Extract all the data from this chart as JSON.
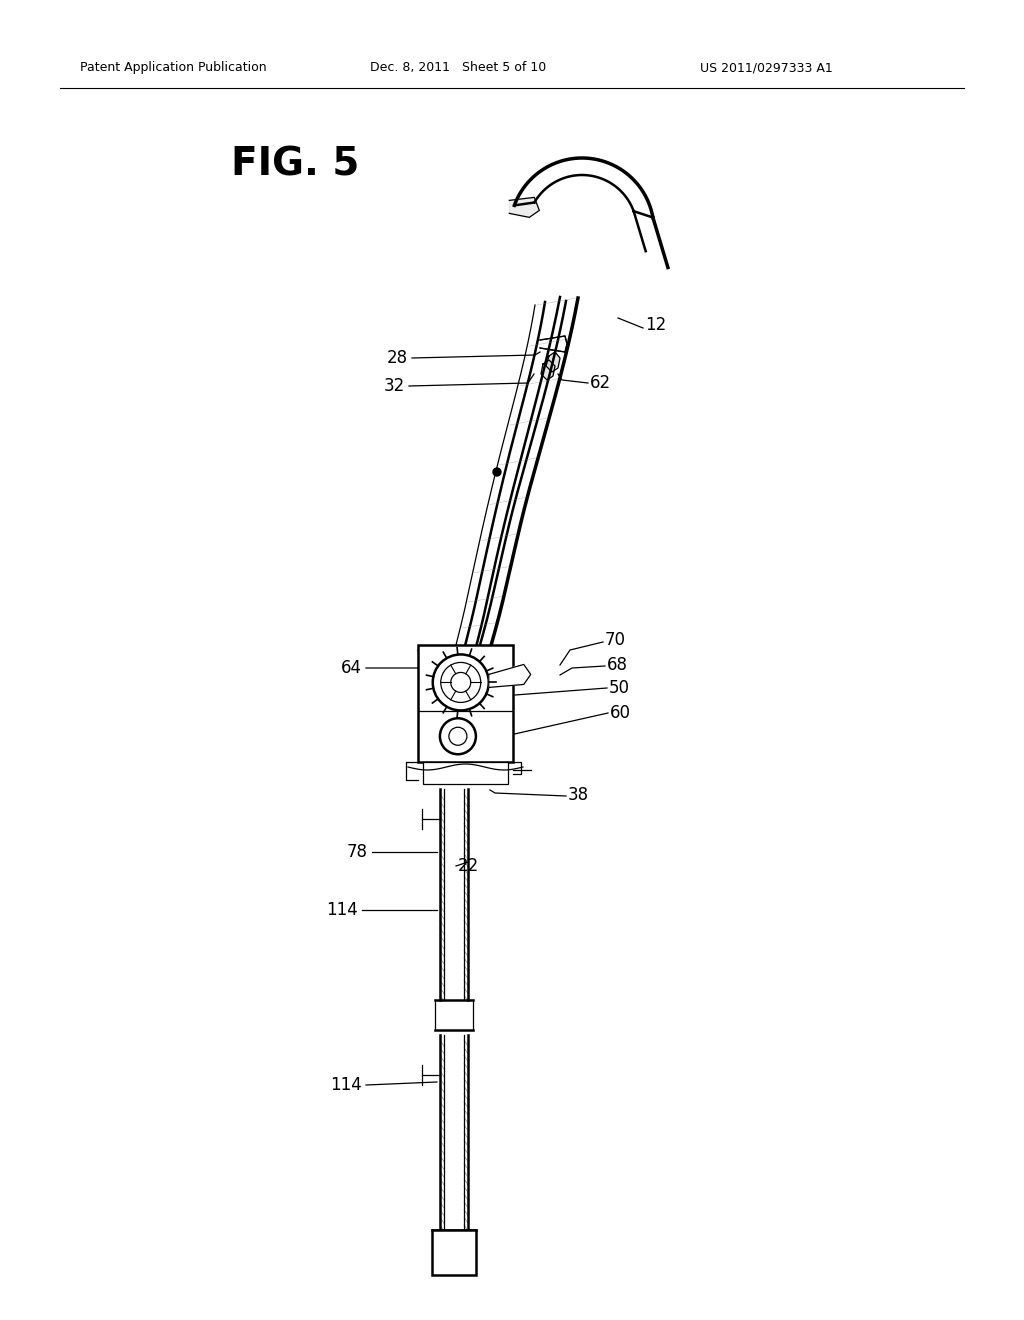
{
  "background_color": "#ffffff",
  "header_left": "Patent Application Publication",
  "header_center": "Dec. 8, 2011   Sheet 5 of 10",
  "header_right": "US 2011/0297333 A1",
  "fig_label": "FIG. 5",
  "page_width": 10.24,
  "page_height": 13.2,
  "dpi": 100
}
